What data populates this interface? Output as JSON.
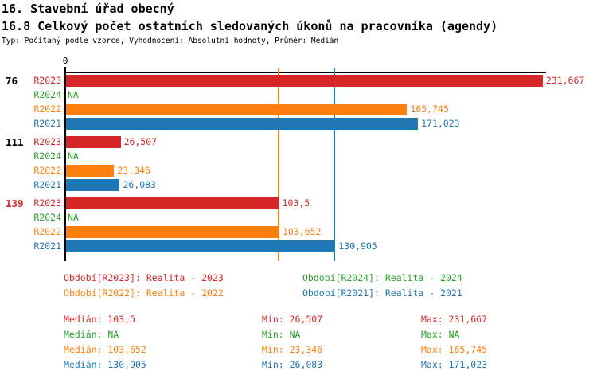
{
  "header": {
    "title1": "16. Stavební úřad obecný",
    "title2": "16.8 Celkový počet ostatních sledovaných úkonů na pracovníka (agendy)",
    "subtitle": "Typ: Počítaný podle vzorce, Vyhodnocení: Absolutní hodnoty, Průměr: Medián"
  },
  "chart_data": {
    "type": "bar",
    "orientation": "horizontal",
    "xlabel": "",
    "ylabel": "",
    "xlim": [
      0,
      234
    ],
    "axis_tick_label": "0",
    "grid": false,
    "row_order": [
      "R2023",
      "R2024",
      "R2022",
      "R2021"
    ],
    "series_colors": {
      "R2023": "#d62728",
      "R2024": "#2ca02c",
      "R2022": "#ff7f0e",
      "R2021": "#1f77b4"
    },
    "na_text": "NA",
    "groups": [
      {
        "label": "76",
        "label_color": "#000000",
        "values": {
          "R2023": 231.667,
          "R2024": null,
          "R2022": 165.745,
          "R2021": 171.023
        },
        "display": {
          "R2023": "231,667",
          "R2024": "NA",
          "R2022": "165,745",
          "R2021": "171,023"
        }
      },
      {
        "label": "111",
        "label_color": "#000000",
        "values": {
          "R2023": 26.507,
          "R2024": null,
          "R2022": 23.346,
          "R2021": 26.083
        },
        "display": {
          "R2023": "26,507",
          "R2024": "NA",
          "R2022": "23,346",
          "R2021": "26,083"
        }
      },
      {
        "label": "139",
        "label_color": "#d62728",
        "values": {
          "R2023": 103.5,
          "R2024": null,
          "R2022": 103.652,
          "R2021": 130.905
        },
        "display": {
          "R2023": "103,5",
          "R2024": "NA",
          "R2022": "103,652",
          "R2021": "130,905"
        }
      }
    ],
    "median_lines": [
      {
        "series": "R2022",
        "value": 103.652,
        "color": "#ff7f0e"
      },
      {
        "series": "R2021",
        "value": 130.905,
        "color": "#1f77b4"
      }
    ]
  },
  "legend": {
    "items": [
      {
        "text": "Období[R2023]: Realita - 2023",
        "color": "#d62728"
      },
      {
        "text": "Období[R2024]: Realita - 2024",
        "color": "#2ca02c"
      },
      {
        "text": "Období[R2022]: Realita - 2022",
        "color": "#ff7f0e"
      },
      {
        "text": "Období[R2021]: Realita - 2021",
        "color": "#1f77b4"
      }
    ]
  },
  "stats": {
    "rows": [
      {
        "color": "#d62728",
        "median": "Medián: 103,5",
        "min": "Min: 26,507",
        "max": "Max: 231,667"
      },
      {
        "color": "#2ca02c",
        "median": "Medián: NA",
        "min": "Min: NA",
        "max": "Max: NA"
      },
      {
        "color": "#ff7f0e",
        "median": "Medián: 103,652",
        "min": "Min: 23,346",
        "max": "Max: 165,745"
      },
      {
        "color": "#1f77b4",
        "median": "Medián: 130,905",
        "min": "Min: 26,083",
        "max": "Max: 171,023"
      }
    ]
  }
}
